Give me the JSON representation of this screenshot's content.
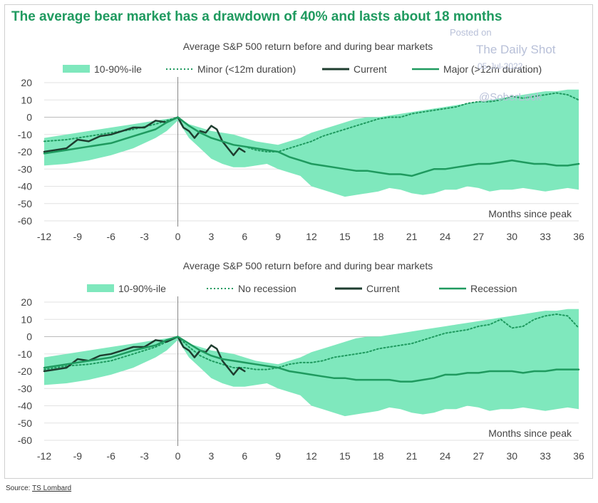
{
  "headline": "The average bear market has a drawdown of 40% and lasts about 18 months",
  "watermark": {
    "line1": "Posted on",
    "line2": "The Daily Shot",
    "line3": "05-Jul-2022",
    "line4": "@SoberLook"
  },
  "source": {
    "prefix": "Source: ",
    "link": "TS Lombard"
  },
  "colors": {
    "band": "#7fe8bd",
    "major": "#1f9a5f",
    "current": "#1e3d2f",
    "minor": "#1f9a5f",
    "headline": "#1f9a5f"
  },
  "chart_data": [
    {
      "type": "line",
      "title": "Average S&P 500 return before and during bear markets",
      "xlabel": "Months since peak",
      "ylabel": "",
      "xlim": [
        -12,
        36
      ],
      "ylim": [
        -60,
        20
      ],
      "xticks": [
        "-12",
        "-9",
        "-6",
        "-3",
        "0",
        "3",
        "6",
        "9",
        "12",
        "15",
        "18",
        "21",
        "24",
        "27",
        "30",
        "33",
        "36"
      ],
      "yticks": [
        "20",
        "10",
        "0",
        "-10",
        "-20",
        "-30",
        "-40",
        "-50",
        "-60"
      ],
      "legend_position": "top",
      "grid": true,
      "band": {
        "name": "10-90%-ile",
        "x": [
          -12,
          -10,
          -8,
          -6,
          -4,
          -2,
          -1,
          0,
          1,
          2,
          3,
          4,
          5,
          6,
          7,
          8,
          9,
          10,
          11,
          12,
          13,
          14,
          15,
          16,
          17,
          18,
          19,
          20,
          21,
          22,
          23,
          24,
          25,
          26,
          27,
          28,
          29,
          30,
          31,
          32,
          33,
          34,
          35,
          36
        ],
        "upper": [
          -12,
          -10,
          -8,
          -6,
          -4,
          -2,
          -1,
          0,
          -4,
          -6,
          -8,
          -9,
          -10,
          -12,
          -14,
          -15,
          -16,
          -14,
          -12,
          -9,
          -7,
          -5,
          -3,
          -1,
          0,
          0,
          1,
          2,
          3,
          4,
          5,
          6,
          7,
          8,
          9,
          10,
          11,
          12,
          13,
          14,
          15,
          15,
          16,
          16
        ],
        "lower": [
          -28,
          -27,
          -25,
          -22,
          -18,
          -12,
          -8,
          -2,
          -12,
          -18,
          -24,
          -27,
          -29,
          -29,
          -28,
          -27,
          -30,
          -32,
          -34,
          -40,
          -42,
          -44,
          -46,
          -45,
          -44,
          -43,
          -41,
          -42,
          -44,
          -45,
          -44,
          -42,
          -42,
          -40,
          -41,
          -43,
          -42,
          -42,
          -41,
          -42,
          -43,
          -42,
          -41,
          -42
        ]
      },
      "series": [
        {
          "name": "Minor (<12m duration)",
          "style": "dotted",
          "x": [
            -12,
            -10,
            -8,
            -6,
            -4,
            -2,
            -1,
            0,
            1,
            2,
            3,
            4,
            5,
            6,
            7,
            8,
            9,
            10,
            11,
            12,
            13,
            14,
            15,
            16,
            17,
            18,
            19,
            20,
            21,
            22,
            23,
            24,
            25,
            26,
            27,
            28,
            29,
            30,
            31,
            32,
            33,
            34,
            35,
            36
          ],
          "y": [
            -14,
            -13,
            -11,
            -9,
            -7,
            -4,
            -2,
            0,
            -5,
            -9,
            -12,
            -14,
            -16,
            -17,
            -19,
            -20,
            -20,
            -18,
            -16,
            -14,
            -11,
            -9,
            -7,
            -5,
            -3,
            -1,
            0,
            0,
            2,
            3,
            4,
            5,
            6,
            8,
            9,
            9,
            10,
            12,
            11,
            12,
            13,
            14,
            13,
            10
          ]
        },
        {
          "name": "Current",
          "style": "solid-dark",
          "x": [
            -12,
            -11,
            -10,
            -9,
            -8,
            -7,
            -6,
            -5,
            -4,
            -3,
            -2,
            -1,
            0,
            0.5,
            1,
            1.5,
            2,
            2.5,
            3,
            3.5,
            4,
            4.5,
            5,
            5.5,
            6
          ],
          "y": [
            -20,
            -19,
            -18,
            -13,
            -14,
            -11,
            -10,
            -8,
            -6,
            -6,
            -2,
            -3,
            0,
            -6,
            -8,
            -12,
            -8,
            -9,
            -5,
            -7,
            -14,
            -18,
            -22,
            -18,
            -20
          ]
        },
        {
          "name": "Major (>12m duration)",
          "style": "solid",
          "x": [
            -12,
            -10,
            -8,
            -6,
            -4,
            -2,
            -1,
            0,
            1,
            2,
            3,
            4,
            5,
            6,
            7,
            8,
            9,
            10,
            11,
            12,
            13,
            14,
            15,
            16,
            17,
            18,
            19,
            20,
            21,
            22,
            23,
            24,
            25,
            26,
            27,
            28,
            29,
            30,
            31,
            32,
            33,
            34,
            35,
            36
          ],
          "y": [
            -21,
            -19,
            -17,
            -15,
            -11,
            -7,
            -3,
            0,
            -5,
            -9,
            -12,
            -14,
            -16,
            -17,
            -18,
            -19,
            -20,
            -23,
            -25,
            -27,
            -28,
            -29,
            -30,
            -31,
            -31,
            -32,
            -33,
            -33,
            -34,
            -32,
            -30,
            -30,
            -29,
            -28,
            -27,
            -27,
            -26,
            -25,
            -26,
            -27,
            -27,
            -28,
            -28,
            -27
          ]
        }
      ]
    },
    {
      "type": "line",
      "title": "Average S&P 500 return before and during bear markets",
      "xlabel": "Months since peak",
      "ylabel": "",
      "xlim": [
        -12,
        36
      ],
      "ylim": [
        -60,
        20
      ],
      "xticks": [
        "-12",
        "-9",
        "-6",
        "-3",
        "0",
        "3",
        "6",
        "9",
        "12",
        "15",
        "18",
        "21",
        "24",
        "27",
        "30",
        "33",
        "36"
      ],
      "yticks": [
        "20",
        "10",
        "0",
        "-10",
        "-20",
        "-30",
        "-40",
        "-50",
        "-60"
      ],
      "legend_position": "top",
      "grid": true,
      "band": {
        "name": "10-90%-ile",
        "x": [
          -12,
          -10,
          -8,
          -6,
          -4,
          -2,
          -1,
          0,
          1,
          2,
          3,
          4,
          5,
          6,
          7,
          8,
          9,
          10,
          11,
          12,
          13,
          14,
          15,
          16,
          17,
          18,
          19,
          20,
          21,
          22,
          23,
          24,
          25,
          26,
          27,
          28,
          29,
          30,
          31,
          32,
          33,
          34,
          35,
          36
        ],
        "upper": [
          -12,
          -10,
          -8,
          -6,
          -4,
          -2,
          -1,
          0,
          -4,
          -6,
          -8,
          -9,
          -10,
          -12,
          -14,
          -15,
          -16,
          -14,
          -12,
          -9,
          -7,
          -5,
          -3,
          -1,
          0,
          0,
          1,
          2,
          3,
          4,
          5,
          6,
          7,
          8,
          9,
          10,
          11,
          12,
          13,
          14,
          15,
          15,
          16,
          16
        ],
        "lower": [
          -28,
          -27,
          -25,
          -22,
          -18,
          -12,
          -8,
          -2,
          -12,
          -18,
          -24,
          -27,
          -29,
          -29,
          -28,
          -27,
          -30,
          -32,
          -34,
          -40,
          -42,
          -44,
          -46,
          -45,
          -44,
          -43,
          -41,
          -42,
          -44,
          -45,
          -44,
          -42,
          -42,
          -40,
          -41,
          -43,
          -42,
          -42,
          -41,
          -42,
          -43,
          -42,
          -41,
          -42
        ]
      },
      "series": [
        {
          "name": "No recession",
          "style": "dotted",
          "x": [
            -12,
            -10,
            -8,
            -6,
            -4,
            -2,
            -1,
            0,
            1,
            2,
            3,
            4,
            5,
            6,
            7,
            8,
            9,
            10,
            11,
            12,
            13,
            14,
            15,
            16,
            17,
            18,
            19,
            20,
            21,
            22,
            23,
            24,
            25,
            26,
            27,
            28,
            29,
            30,
            31,
            32,
            33,
            34,
            35,
            36
          ],
          "y": [
            -19,
            -17,
            -16,
            -14,
            -10,
            -6,
            -3,
            0,
            -6,
            -11,
            -14,
            -16,
            -18,
            -18,
            -19,
            -19,
            -18,
            -16,
            -15,
            -15,
            -14,
            -12,
            -11,
            -10,
            -9,
            -7,
            -6,
            -5,
            -4,
            -2,
            0,
            2,
            3,
            4,
            6,
            7,
            10,
            5,
            6,
            10,
            12,
            13,
            12,
            5
          ]
        },
        {
          "name": "Current",
          "style": "solid-dark",
          "x": [
            -12,
            -11,
            -10,
            -9,
            -8,
            -7,
            -6,
            -5,
            -4,
            -3,
            -2,
            -1,
            0,
            0.5,
            1,
            1.5,
            2,
            2.5,
            3,
            3.5,
            4,
            4.5,
            5,
            5.5,
            6
          ],
          "y": [
            -20,
            -19,
            -18,
            -13,
            -14,
            -11,
            -10,
            -8,
            -6,
            -6,
            -2,
            -3,
            0,
            -6,
            -8,
            -12,
            -8,
            -9,
            -5,
            -7,
            -14,
            -18,
            -22,
            -18,
            -20
          ]
        },
        {
          "name": "Recession",
          "style": "solid",
          "x": [
            -12,
            -10,
            -8,
            -6,
            -4,
            -2,
            -1,
            0,
            1,
            2,
            3,
            4,
            5,
            6,
            7,
            8,
            9,
            10,
            11,
            12,
            13,
            14,
            15,
            16,
            17,
            18,
            19,
            20,
            21,
            22,
            23,
            24,
            25,
            26,
            27,
            28,
            29,
            30,
            31,
            32,
            33,
            34,
            35,
            36
          ],
          "y": [
            -18,
            -16,
            -14,
            -12,
            -8,
            -5,
            -2,
            0,
            -4,
            -8,
            -11,
            -13,
            -14,
            -15,
            -16,
            -17,
            -18,
            -20,
            -21,
            -22,
            -23,
            -24,
            -24,
            -25,
            -25,
            -25,
            -25,
            -26,
            -26,
            -25,
            -24,
            -22,
            -22,
            -21,
            -21,
            -20,
            -20,
            -20,
            -21,
            -20,
            -20,
            -19,
            -19,
            -19
          ]
        }
      ]
    }
  ]
}
